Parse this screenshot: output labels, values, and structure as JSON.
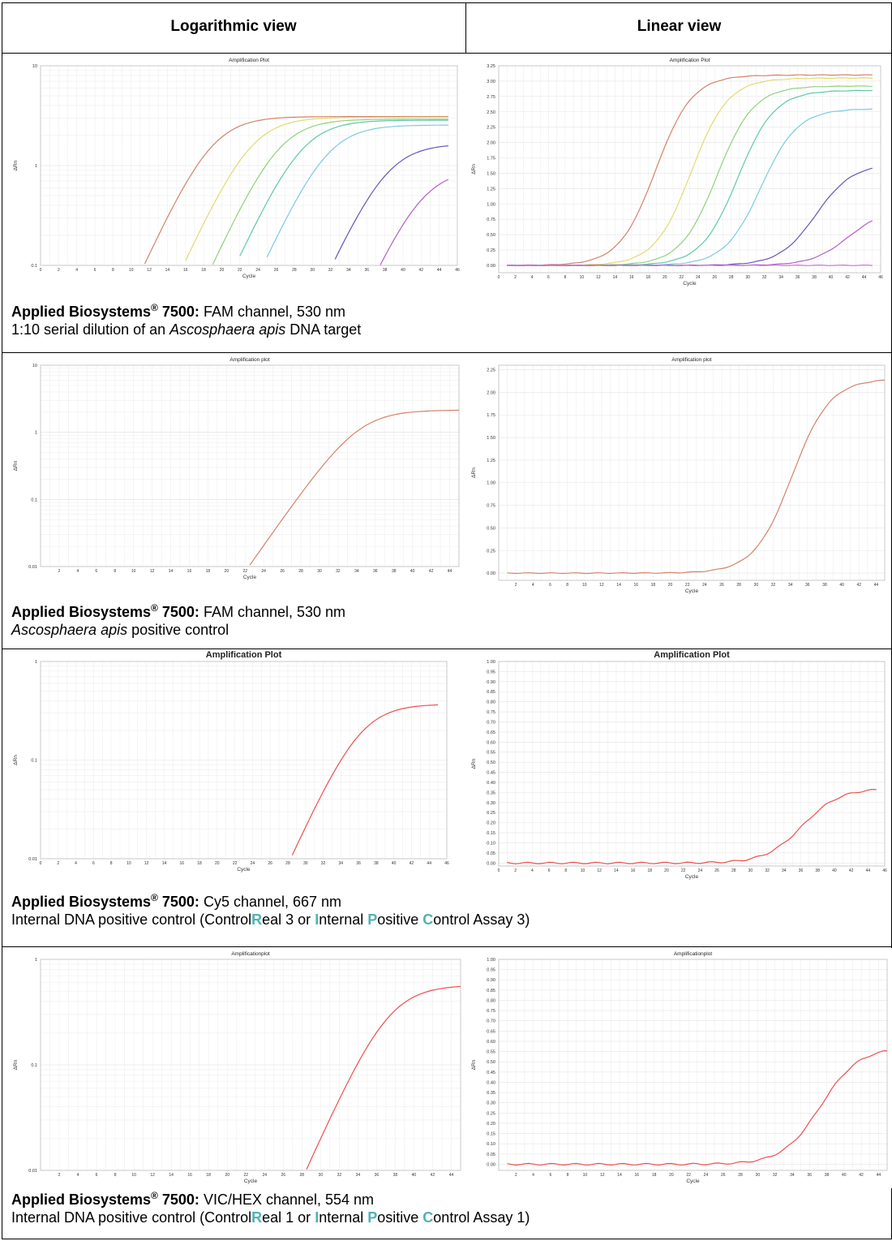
{
  "headers": {
    "log": "Logarithmic view",
    "linear": "Linear view"
  },
  "rows": [
    {
      "caption_title": "Applied Biosystems",
      "caption_reg": "®",
      "caption_model": " 7500:",
      "caption_channel": " FAM channel, 530 nm",
      "caption_line2_prefix": "1:10 serial dilution of an ",
      "caption_line2_italic": "Ascosphaera apis",
      "caption_line2_suffix": " DNA target"
    },
    {
      "caption_title": "Applied Biosystems",
      "caption_reg": "®",
      "caption_model": " 7500:",
      "caption_channel": " FAM channel, 530 nm",
      "caption_line2_italic": "Ascosphaera apis",
      "caption_line2_suffix": " positive control"
    },
    {
      "caption_title": "Applied Biosystems",
      "caption_reg": "®",
      "caption_model": " 7500:",
      "caption_channel": " Cy5 channel, 667 nm",
      "ipc": [
        "Internal DNA positive control (Control",
        "R",
        "eal 3 or ",
        "I",
        "nternal ",
        "P",
        "ositive ",
        "C",
        "ontrol Assay 3)"
      ]
    },
    {
      "caption_title": "Applied Biosystems",
      "caption_reg": "®",
      "caption_model": " 7500:",
      "caption_channel": " VIC/HEX channel, 554 nm",
      "ipc": [
        "Internal DNA positive control (Control",
        "R",
        "eal 1 or ",
        "I",
        "nternal ",
        "P",
        "ositive ",
        "C",
        "ontrol Assay 1)"
      ]
    }
  ],
  "colors": {
    "highlight": "#4fb3b3",
    "grid": "#e6e6e6"
  },
  "chart_data": [
    {
      "id": "r1-log",
      "type": "line",
      "title": "Amplification Plot",
      "xlabel": "Cycle",
      "ylabel": "ΔRn",
      "scale": "log",
      "xlim": [
        0,
        46
      ],
      "ylim": [
        0.1,
        10
      ],
      "xticks": [
        0,
        2,
        4,
        6,
        8,
        10,
        12,
        14,
        16,
        18,
        20,
        22,
        24,
        26,
        28,
        30,
        32,
        34,
        36,
        38,
        40,
        42,
        44,
        46
      ],
      "yticks": [
        0.1,
        1,
        10
      ],
      "yticklabels": [
        "0.1",
        "1",
        "10"
      ],
      "series": [
        {
          "color": "#d4826a",
          "Ct": 18.9,
          "plateau": 3.1
        },
        {
          "color": "#e3da70",
          "Ct": 23.2,
          "plateau": 3.05
        },
        {
          "color": "#8fd27a",
          "Ct": 26.3,
          "plateau": 2.92
        },
        {
          "color": "#5ec9a8",
          "Ct": 28.8,
          "plateau": 2.85
        },
        {
          "color": "#7ccbe0",
          "Ct": 31.6,
          "plateau": 2.55
        },
        {
          "color": "#6a55b8",
          "Ct": 38.2,
          "plateau": 1.65
        },
        {
          "color": "#b160c4",
          "Ct": 42.1,
          "plateau": 0.92
        }
      ]
    },
    {
      "id": "r1-lin",
      "type": "line",
      "title": "Amplification Plot",
      "xlabel": "Cycle",
      "ylabel": "ΔRn",
      "scale": "linear",
      "xlim": [
        0,
        46
      ],
      "ylim": [
        -0.12,
        3.25
      ],
      "xticks": [
        0,
        2,
        4,
        6,
        8,
        10,
        12,
        14,
        16,
        18,
        20,
        22,
        24,
        26,
        28,
        30,
        32,
        34,
        36,
        38,
        40,
        42,
        44,
        46
      ],
      "yticks": [
        0,
        0.25,
        0.5,
        0.75,
        1,
        1.25,
        1.5,
        1.75,
        2,
        2.25,
        2.5,
        2.75,
        3,
        3.25
      ],
      "yticklabels": [
        "0.00",
        "0.25",
        "0.50",
        "0.75",
        "1.00",
        "1.25",
        "1.50",
        "1.75",
        "2.00",
        "2.25",
        "2.50",
        "2.75",
        "3.00",
        "3.25"
      ],
      "series": [
        {
          "color": "#d4826a",
          "Ct": 18.9,
          "plateau": 3.1
        },
        {
          "color": "#e3da70",
          "Ct": 23.2,
          "plateau": 3.05
        },
        {
          "color": "#8fd27a",
          "Ct": 26.3,
          "plateau": 2.92
        },
        {
          "color": "#5ec9a8",
          "Ct": 28.8,
          "plateau": 2.85
        },
        {
          "color": "#7ccbe0",
          "Ct": 31.6,
          "plateau": 2.55
        },
        {
          "color": "#6a55b8",
          "Ct": 38.2,
          "plateau": 1.65
        },
        {
          "color": "#b160c4",
          "Ct": 42.1,
          "plateau": 0.92
        },
        {
          "color": "#d070d0",
          "Ct": 99,
          "plateau": 0.0
        }
      ]
    },
    {
      "id": "r2-log",
      "type": "line",
      "title": "Amplification plot",
      "xlabel": "Cycle",
      "ylabel": "ΔRn",
      "scale": "log",
      "xlim": [
        0,
        45
      ],
      "ylim": [
        0.01,
        10
      ],
      "xticks": [
        2,
        4,
        6,
        8,
        10,
        12,
        14,
        16,
        18,
        20,
        22,
        24,
        26,
        28,
        30,
        32,
        34,
        36,
        38,
        40,
        42,
        44
      ],
      "yticks": [
        0.01,
        0.1,
        1,
        10
      ],
      "yticklabels": [
        "0.01",
        "0.1",
        "1",
        "10"
      ],
      "series": [
        {
          "color": "#d4826a",
          "Ct": 34.2,
          "plateau": 2.15
        }
      ]
    },
    {
      "id": "r2-lin",
      "type": "line",
      "title": "Amplification plot",
      "xlabel": "Cycle",
      "ylabel": "ΔRn",
      "scale": "linear",
      "xlim": [
        0,
        45
      ],
      "ylim": [
        -0.08,
        2.3
      ],
      "xticks": [
        2,
        4,
        6,
        8,
        10,
        12,
        14,
        16,
        18,
        20,
        22,
        24,
        26,
        28,
        30,
        32,
        34,
        36,
        38,
        40,
        42,
        44
      ],
      "yticks": [
        0,
        0.25,
        0.5,
        0.75,
        1,
        1.25,
        1.5,
        1.75,
        2,
        2.25
      ],
      "yticklabels": [
        "0.00",
        "0.25",
        "0.50",
        "0.75",
        "1.00",
        "1.25",
        "1.50",
        "1.75",
        "2.00",
        "2.25"
      ],
      "series": [
        {
          "color": "#d4826a",
          "Ct": 34.2,
          "plateau": 2.15
        }
      ]
    },
    {
      "id": "r3-log",
      "type": "line",
      "title": "Amplification Plot",
      "xlabel": "Cycle",
      "ylabel": "ΔRn",
      "scale": "log",
      "xlim": [
        0,
        46
      ],
      "ylim": [
        0.01,
        1
      ],
      "xticks": [
        0,
        2,
        4,
        6,
        8,
        10,
        12,
        14,
        16,
        18,
        20,
        22,
        24,
        26,
        28,
        30,
        32,
        34,
        36,
        38,
        40,
        42,
        44,
        46
      ],
      "yticks": [
        0.01,
        0.1,
        1
      ],
      "yticklabels": [
        "0.01",
        "0.1",
        "1"
      ],
      "series": [
        {
          "color": "#ee4e4e",
          "Ct": 36.2,
          "plateau": 0.37
        }
      ]
    },
    {
      "id": "r3-lin",
      "type": "line",
      "title": "Amplification Plot",
      "xlabel": "Cycle",
      "ylabel": "ΔRn",
      "scale": "linear",
      "xlim": [
        0,
        46
      ],
      "ylim": [
        -0.015,
        1.0
      ],
      "xticks": [
        0,
        2,
        4,
        6,
        8,
        10,
        12,
        14,
        16,
        18,
        20,
        22,
        24,
        26,
        28,
        30,
        32,
        34,
        36,
        38,
        40,
        42,
        44,
        46
      ],
      "yticks": [
        0,
        0.05,
        0.1,
        0.15,
        0.2,
        0.25,
        0.3,
        0.35,
        0.4,
        0.45,
        0.5,
        0.55,
        0.6,
        0.65,
        0.7,
        0.75,
        0.8,
        0.85,
        0.9,
        0.95,
        1.0
      ],
      "yticklabels": [
        "0.00",
        "0.05",
        "0.10",
        "0.15",
        "0.20",
        "0.25",
        "0.30",
        "0.35",
        "0.40",
        "0.45",
        "0.50",
        "0.55",
        "0.60",
        "0.65",
        "0.70",
        "0.75",
        "0.80",
        "0.85",
        "0.90",
        "0.95",
        "1.00"
      ],
      "series": [
        {
          "color": "#ee4e4e",
          "Ct": 36.2,
          "plateau": 0.37
        }
      ]
    },
    {
      "id": "r4-log",
      "type": "line",
      "title": "Amplificationplot",
      "xlabel": "Cycle",
      "ylabel": "ΔRn",
      "scale": "log",
      "xlim": [
        0,
        45
      ],
      "ylim": [
        0.01,
        1
      ],
      "xticks": [
        2,
        4,
        6,
        8,
        10,
        12,
        14,
        16,
        18,
        20,
        22,
        24,
        26,
        28,
        30,
        32,
        34,
        36,
        38,
        40,
        42,
        44
      ],
      "yticks": [
        0.01,
        0.1,
        1
      ],
      "yticklabels": [
        "0.01",
        "0.1",
        "1"
      ],
      "series": [
        {
          "color": "#ee4e4e",
          "Ct": 37.3,
          "plateau": 0.57
        }
      ]
    },
    {
      "id": "r4-lin",
      "type": "line",
      "title": "Amplificationplot",
      "xlabel": "Cycle",
      "ylabel": "ΔRn",
      "scale": "linear",
      "xlim": [
        0,
        45
      ],
      "ylim": [
        -0.03,
        1.0
      ],
      "xticks": [
        2,
        4,
        6,
        8,
        10,
        12,
        14,
        16,
        18,
        20,
        22,
        24,
        26,
        28,
        30,
        32,
        34,
        36,
        38,
        40,
        42,
        44
      ],
      "yticks": [
        0,
        0.05,
        0.1,
        0.15,
        0.2,
        0.25,
        0.3,
        0.35,
        0.4,
        0.45,
        0.5,
        0.55,
        0.6,
        0.65,
        0.7,
        0.75,
        0.8,
        0.85,
        0.9,
        0.95,
        1.0
      ],
      "yticklabels": [
        "0.00",
        "0.05",
        "0.10",
        "0.15",
        "0.20",
        "0.25",
        "0.30",
        "0.35",
        "0.40",
        "0.45",
        "0.50",
        "0.55",
        "0.60",
        "0.65",
        "0.70",
        "0.75",
        "0.80",
        "0.85",
        "0.90",
        "0.95",
        "1.00"
      ],
      "series": [
        {
          "color": "#ee4e4e",
          "Ct": 37.3,
          "plateau": 0.57
        }
      ]
    }
  ]
}
